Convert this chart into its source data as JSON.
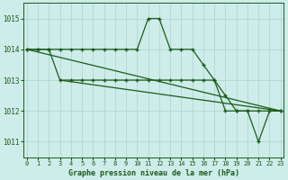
{
  "title": "Graphe pression niveau de la mer (hPa)",
  "bg_color": "#ceecea",
  "line_color": "#1a5c1a",
  "grid_color": "#aed8d4",
  "series": [
    {
      "x": [
        0,
        1,
        2,
        3,
        4,
        5,
        6,
        7,
        8,
        9,
        10,
        11,
        12,
        13,
        14,
        15,
        16,
        17,
        18,
        19,
        20,
        21,
        22,
        23
      ],
      "y": [
        1014,
        1014,
        1014,
        1014,
        1014,
        1014,
        1014,
        1014,
        1014,
        1014,
        1014,
        1015,
        1015,
        1014,
        1014,
        1014,
        1013.5,
        1013,
        1012.5,
        1012,
        1012,
        1012,
        1012,
        1012
      ],
      "marker": true
    },
    {
      "x": [
        0,
        23
      ],
      "y": [
        1014,
        1012
      ],
      "marker": false
    },
    {
      "x": [
        3,
        23
      ],
      "y": [
        1013,
        1012
      ],
      "marker": false
    },
    {
      "x": [
        0,
        1,
        2,
        3,
        4,
        5,
        6,
        7,
        8,
        9,
        10,
        11,
        12,
        13,
        14,
        15,
        16,
        17,
        18,
        19,
        20,
        21,
        22,
        23
      ],
      "y": [
        1014,
        1014,
        1014,
        1013,
        1013,
        1013,
        1013,
        1013,
        1013,
        1013,
        1013,
        1013,
        1013,
        1013,
        1013,
        1013,
        1013,
        1013,
        1012,
        1012,
        1012,
        1011,
        1012,
        1012
      ],
      "marker": true
    }
  ],
  "ylim": [
    1010.5,
    1015.5
  ],
  "xlim": [
    -0.3,
    23.3
  ],
  "yticks": [
    1011,
    1012,
    1013,
    1014,
    1015
  ],
  "xticks": [
    0,
    1,
    2,
    3,
    4,
    5,
    6,
    7,
    8,
    9,
    10,
    11,
    12,
    13,
    14,
    15,
    16,
    17,
    18,
    19,
    20,
    21,
    22,
    23
  ]
}
